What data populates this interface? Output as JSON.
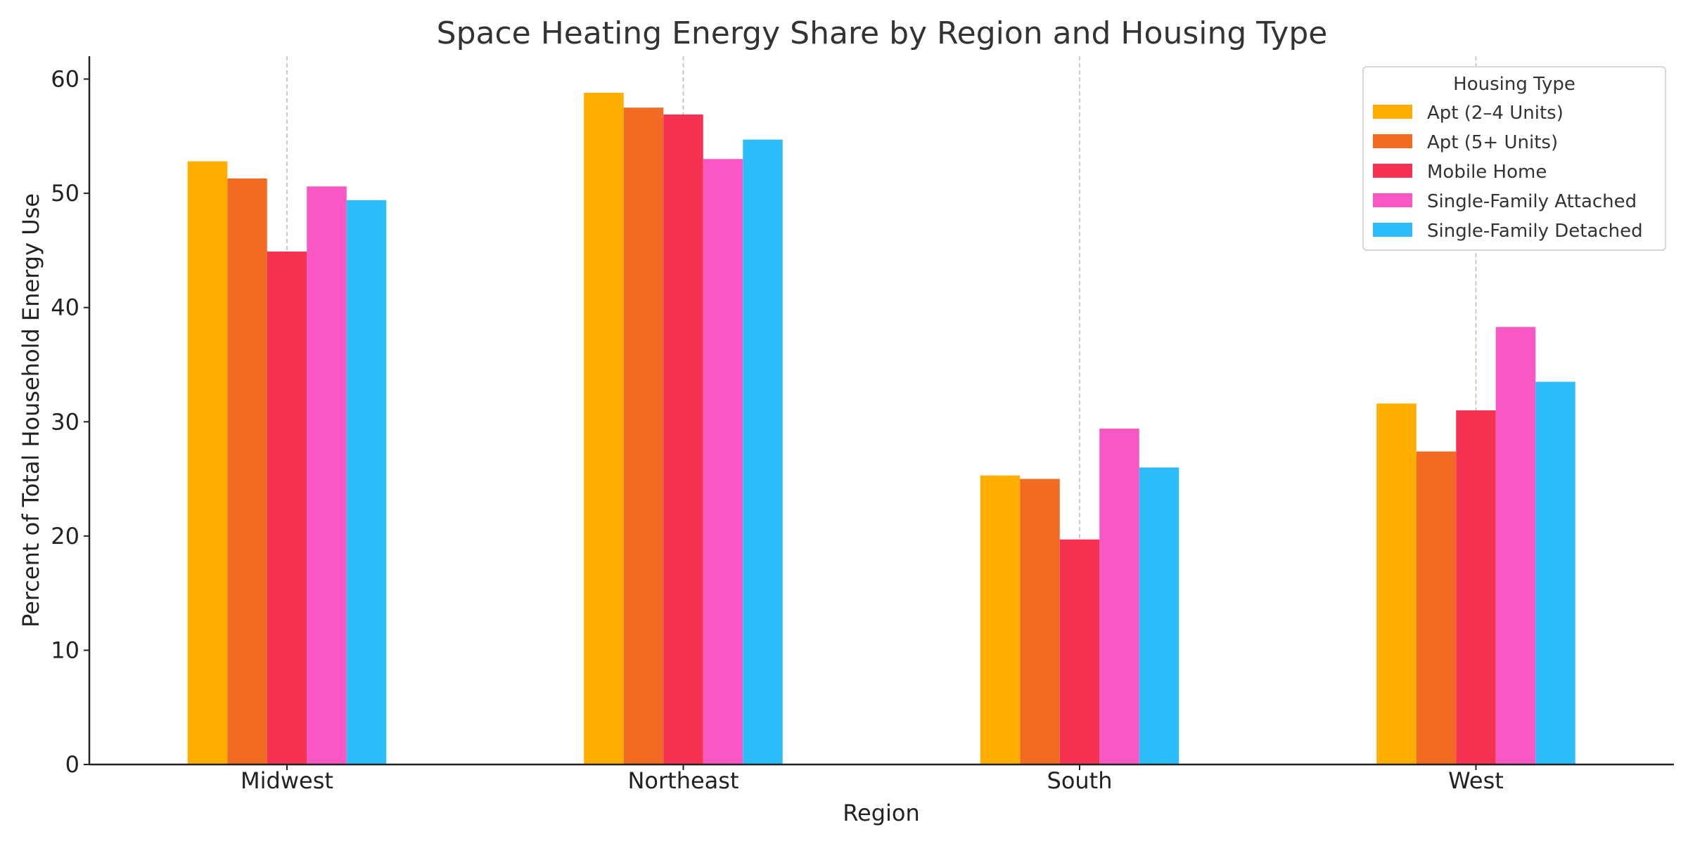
{
  "chart_data": {
    "type": "bar",
    "title": "Space Heating Energy Share by Region and Housing Type",
    "xlabel": "Region",
    "ylabel": "Percent of Total Household Energy Use",
    "categories": [
      "Midwest",
      "Northeast",
      "South",
      "West"
    ],
    "ylim": [
      0,
      62
    ],
    "yticks": [
      0,
      10,
      20,
      30,
      40,
      50,
      60
    ],
    "grid": "vertical dashed at categories",
    "legend": {
      "title": "Housing Type",
      "placement": "top-right"
    },
    "series": [
      {
        "name": "Apt (2–4 Units)",
        "color": "#FFAE00",
        "values": [
          52.8,
          58.8,
          25.3,
          31.6
        ]
      },
      {
        "name": "Apt (5+ Units)",
        "color": "#F26B23",
        "values": [
          51.3,
          57.5,
          25.0,
          27.4
        ]
      },
      {
        "name": "Mobile Home",
        "color": "#F53252",
        "values": [
          44.9,
          56.9,
          19.7,
          31.0
        ]
      },
      {
        "name": "Single-Family Attached",
        "color": "#F957C3",
        "values": [
          50.6,
          53.0,
          29.4,
          38.3
        ]
      },
      {
        "name": "Single-Family Detached",
        "color": "#2DBDFB",
        "values": [
          49.4,
          54.7,
          26.0,
          33.5
        ]
      }
    ]
  }
}
